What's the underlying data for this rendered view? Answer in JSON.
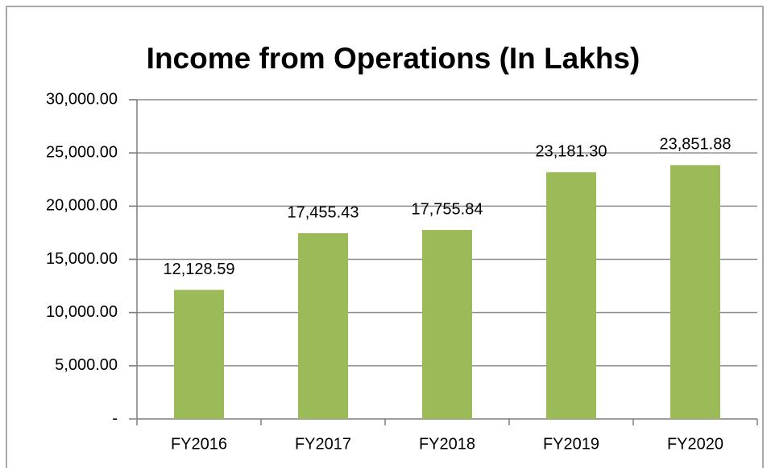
{
  "chart_data": {
    "type": "bar",
    "title": "Income from Operations (In Lakhs)",
    "categories": [
      "FY2016",
      "FY2017",
      "FY2018",
      "FY2019",
      "FY2020"
    ],
    "values": [
      12128.59,
      17455.43,
      17755.84,
      23181.3,
      23851.88
    ],
    "value_labels": [
      "12,128.59",
      "17,455.43",
      "17,755.84",
      "23,181.30",
      "23,851.88"
    ],
    "color": "#9bbb59",
    "ylim": [
      0,
      30000
    ],
    "yticks": [
      {
        "value": 0,
        "label": "-"
      },
      {
        "value": 5000,
        "label": "5,000.00"
      },
      {
        "value": 10000,
        "label": "10,000.00"
      },
      {
        "value": 15000,
        "label": "15,000.00"
      },
      {
        "value": 20000,
        "label": "20,000.00"
      },
      {
        "value": 25000,
        "label": "25,000.00"
      },
      {
        "value": 30000,
        "label": "30,000.00"
      }
    ],
    "grid": true
  }
}
